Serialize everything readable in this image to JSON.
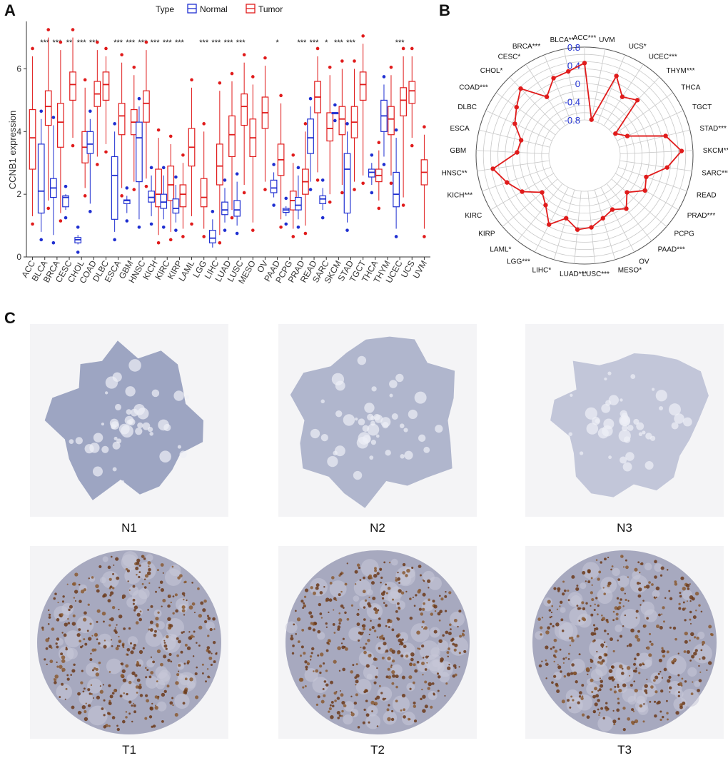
{
  "panels": {
    "a": {
      "letter": "A"
    },
    "b": {
      "letter": "B"
    },
    "c": {
      "letter": "C"
    }
  },
  "chart_data": [
    {
      "type": "box",
      "panel": "A",
      "ylabel": "CCNB1 expression",
      "ylim": [
        0,
        7.4
      ],
      "yticks": [
        0,
        2,
        4,
        6
      ],
      "legend": {
        "title": "Type",
        "placement": "top",
        "entries": [
          {
            "name": "Normal",
            "color": "#1f2fd1"
          },
          {
            "name": "Tumor",
            "color": "#e01b1b"
          }
        ]
      },
      "categories": [
        "ACC",
        "BLCA",
        "BRCA",
        "CESC",
        "CHOL",
        "COAD",
        "DLBC",
        "ESCA",
        "GBM",
        "HNSC",
        "KICH",
        "KIRC",
        "KIRP",
        "LAML",
        "LGG",
        "LIHC",
        "LUAD",
        "LUSC",
        "MESO",
        "OV",
        "PAAD",
        "PCPG",
        "PRAD",
        "READ",
        "SARC",
        "SKCM",
        "STAD",
        "TGCT",
        "THCA",
        "THYM",
        "UCEC",
        "UCS",
        "UVM"
      ],
      "significance": [
        "",
        "***",
        "***",
        "**",
        "***",
        "***",
        "",
        "***",
        "***",
        "***",
        "***",
        "***",
        "***",
        "",
        "***",
        "***",
        "***",
        "***",
        "",
        "",
        "*",
        "",
        "***",
        "***",
        "*",
        "***",
        "***",
        "",
        "",
        "",
        "***",
        "",
        ""
      ],
      "series": [
        {
          "name": "Normal",
          "color": "#1f2fd1",
          "values": [
            null,
            [
              0.8,
              1.4,
              2.1,
              3.6,
              4.4
            ],
            [
              0.7,
              1.9,
              2.2,
              2.5,
              4.2
            ],
            [
              1.5,
              1.6,
              1.9,
              1.95,
              2.0
            ],
            [
              0.4,
              0.45,
              0.55,
              0.62,
              0.7
            ],
            [
              1.7,
              3.3,
              3.6,
              4.0,
              4.4
            ],
            null,
            [
              0.8,
              1.2,
              2.6,
              3.2,
              4.0
            ],
            [
              1.4,
              1.7,
              1.8,
              1.82,
              1.95
            ],
            [
              1.2,
              2.4,
              3.8,
              4.3,
              4.8
            ],
            [
              1.3,
              1.75,
              1.9,
              2.1,
              2.6
            ],
            [
              1.2,
              1.55,
              1.75,
              2.0,
              2.6
            ],
            [
              1.1,
              1.4,
              1.55,
              1.85,
              2.3
            ],
            null,
            null,
            [
              0.3,
              0.45,
              0.6,
              0.85,
              1.2
            ],
            [
              1.1,
              1.35,
              1.5,
              1.75,
              2.2
            ],
            [
              1.0,
              1.3,
              1.5,
              1.8,
              2.4
            ],
            null,
            null,
            [
              1.9,
              2.05,
              2.2,
              2.45,
              2.7
            ],
            [
              1.3,
              1.42,
              1.5,
              1.55,
              1.62
            ],
            [
              1.2,
              1.5,
              1.65,
              1.9,
              2.6
            ],
            [
              2.4,
              3.3,
              3.8,
              4.4,
              4.8
            ],
            [
              1.5,
              1.7,
              1.85,
              1.95,
              2.2
            ],
            [
              4.6,
              4.6,
              4.6,
              4.6,
              4.6
            ],
            [
              1.1,
              1.4,
              2.8,
              3.3,
              4.0
            ],
            null,
            [
              2.3,
              2.55,
              2.7,
              2.8,
              3.0
            ],
            [
              3.2,
              4.0,
              4.5,
              5.0,
              5.5
            ],
            [
              0.9,
              1.6,
              2.0,
              2.7,
              3.8
            ],
            null,
            null
          ]
        },
        {
          "name": "Tumor",
          "color": "#e01b1b",
          "values": [
            [
              1.3,
              2.8,
              3.8,
              4.7,
              6.4
            ],
            [
              1.8,
              4.2,
              4.8,
              5.3,
              7.0
            ],
            [
              1.4,
              3.5,
              4.3,
              4.9,
              6.6
            ],
            [
              3.8,
              5.0,
              5.5,
              5.9,
              7.0
            ],
            [
              2.2,
              3.0,
              3.5,
              4.0,
              5.4
            ],
            [
              3.2,
              4.8,
              5.2,
              5.6,
              6.6
            ],
            [
              3.6,
              5.0,
              5.5,
              5.9,
              6.4
            ],
            [
              2.2,
              3.9,
              4.5,
              4.9,
              6.2
            ],
            [
              2.4,
              3.9,
              4.3,
              4.7,
              5.8
            ],
            [
              2.5,
              4.3,
              4.9,
              5.3,
              6.6
            ],
            [
              0.7,
              1.6,
              2.0,
              2.8,
              3.8
            ],
            [
              0.8,
              1.8,
              2.3,
              2.9,
              3.6
            ],
            [
              0.9,
              1.6,
              2.0,
              2.3,
              3.0
            ],
            [
              1.3,
              2.9,
              3.5,
              4.1,
              5.4
            ],
            [
              0.9,
              1.6,
              1.9,
              2.5,
              4.0
            ],
            [
              0.7,
              2.3,
              2.9,
              3.6,
              5.3
            ],
            [
              1.5,
              3.2,
              3.9,
              4.5,
              5.6
            ],
            [
              2.3,
              4.2,
              4.8,
              5.2,
              6.2
            ],
            [
              1.1,
              3.2,
              3.8,
              4.4,
              5.5
            ],
            [
              2.4,
              4.1,
              4.6,
              5.1,
              6.1
            ],
            [
              1.2,
              2.6,
              3.1,
              3.6,
              4.9
            ],
            [
              0.9,
              1.5,
              1.8,
              2.1,
              3.0
            ],
            [
              1.0,
              2.0,
              2.4,
              2.8,
              4.0
            ],
            [
              2.7,
              4.6,
              5.1,
              5.6,
              6.4
            ],
            [
              2.0,
              3.7,
              4.1,
              4.6,
              5.8
            ],
            [
              2.3,
              3.9,
              4.4,
              4.8,
              6.0
            ],
            [
              2.4,
              3.8,
              4.3,
              4.8,
              6.0
            ],
            [
              2.6,
              5.0,
              5.5,
              5.9,
              6.8
            ],
            [
              1.8,
              2.4,
              2.6,
              2.8,
              3.4
            ],
            [
              2.6,
              3.9,
              4.4,
              4.8,
              5.8
            ],
            [
              1.9,
              4.5,
              5.0,
              5.4,
              6.4
            ],
            [
              3.8,
              4.9,
              5.3,
              5.6,
              6.4
            ],
            [
              0.9,
              2.3,
              2.7,
              3.1,
              3.9
            ]
          ]
        }
      ]
    },
    {
      "type": "radar",
      "panel": "B",
      "rlim": [
        -0.8,
        0.8
      ],
      "rticks": [
        "0.8",
        "0.4",
        "0",
        "-0.4",
        "-0.8"
      ],
      "color": "#e01b1b",
      "categories": [
        "ACC***",
        "UVM",
        "UCS*",
        "UCEC***",
        "THYM***",
        "THCA",
        "TGCT",
        "STAD***",
        "SKCM***",
        "SARC***",
        "READ",
        "PRAD***",
        "PCPG",
        "PAAD***",
        "OV",
        "MESO*",
        "LUSC***",
        "LUAD***",
        "LIHC*",
        "LGG***",
        "LAML*",
        "KIRP",
        "KIRC",
        "KICH***",
        "HNSC**",
        "GBM",
        "ESCA",
        "DLBC",
        "COAD***",
        "CHOL*",
        "CESC*",
        "BRCA***",
        "BLCA**"
      ],
      "values": [
        0.45,
        -0.78,
        0.3,
        -0.05,
        0.1,
        -0.75,
        -0.55,
        0.25,
        0.55,
        0.25,
        -0.15,
        -0.05,
        -0.35,
        -0.1,
        -0.25,
        -0.15,
        0.0,
        0.05,
        -0.15,
        0.12,
        -0.2,
        -0.35,
        0.0,
        0.22,
        0.45,
        -0.1,
        -0.15,
        0.1,
        0.25,
        0.45,
        -0.05,
        0.25,
        0.3
      ]
    }
  ],
  "tissues": [
    {
      "label": "N1",
      "kind": "normal"
    },
    {
      "label": "N2",
      "kind": "normal"
    },
    {
      "label": "N3",
      "kind": "normal"
    },
    {
      "label": "T1",
      "kind": "tumor"
    },
    {
      "label": "T2",
      "kind": "tumor"
    },
    {
      "label": "T3",
      "kind": "tumor"
    }
  ]
}
